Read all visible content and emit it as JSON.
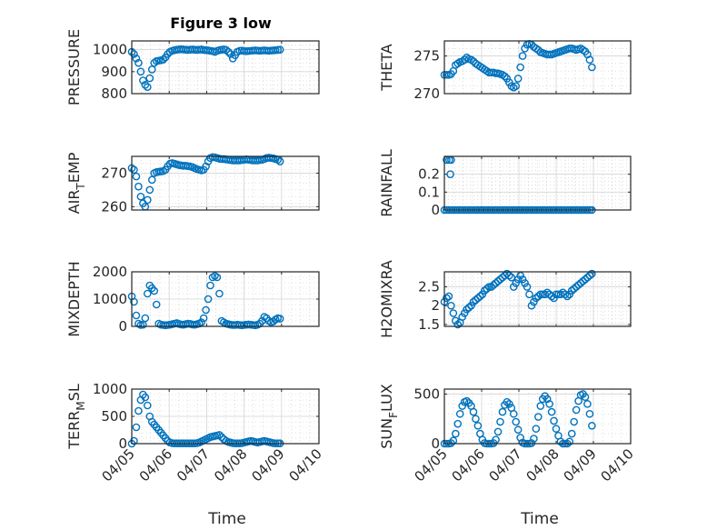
{
  "figure": {
    "title": "Figure 3 low",
    "xlabel": "Time",
    "x_tick_labels": [
      "04/05",
      "04/06",
      "04/07",
      "04/08",
      "04/09",
      "04/10"
    ],
    "marker_color": "#0072BD"
  },
  "chart_data": [
    {
      "type": "scatter",
      "ylabel": "PRESSURE",
      "yticks": [
        800,
        900,
        1000
      ],
      "ylim": [
        800,
        1040
      ],
      "grid": true,
      "xlim": [
        0,
        5
      ],
      "x": [
        0.0,
        0.06,
        0.12,
        0.18,
        0.24,
        0.3,
        0.36,
        0.42,
        0.48,
        0.54,
        0.6,
        0.66,
        0.72,
        0.78,
        0.84,
        0.9,
        0.96,
        1.02,
        1.08,
        1.14,
        1.2,
        1.26,
        1.32,
        1.38,
        1.44,
        1.5,
        1.56,
        1.62,
        1.68,
        1.74,
        1.8,
        1.86,
        1.92,
        1.98,
        2.04,
        2.1,
        2.16,
        2.22,
        2.28,
        2.34,
        2.4,
        2.46,
        2.52,
        2.58,
        2.64,
        2.7,
        2.76,
        2.82,
        2.88,
        2.94,
        3.0,
        3.06,
        3.12,
        3.18,
        3.24,
        3.3,
        3.36,
        3.42,
        3.48,
        3.54,
        3.6,
        3.66,
        3.72,
        3.78,
        3.84,
        3.9,
        3.96
      ],
      "values": [
        990,
        980,
        960,
        940,
        900,
        860,
        840,
        830,
        870,
        910,
        940,
        948,
        950,
        952,
        955,
        965,
        980,
        990,
        995,
        998,
        1000,
        1001,
        1002,
        1001,
        1000,
        999,
        1000,
        1001,
        1000,
        999,
        1000,
        1001,
        999,
        998,
        997,
        995,
        993,
        990,
        995,
        998,
        1000,
        1001,
        999,
        990,
        980,
        960,
        975,
        990,
        995,
        996,
        994,
        993,
        994,
        995,
        996,
        997,
        996,
        995,
        996,
        997,
        996,
        995,
        996,
        997,
        998,
        999,
        1000
      ]
    },
    {
      "type": "scatter",
      "ylabel": "THETA",
      "yticks": [
        270,
        275
      ],
      "ylim": [
        270,
        277
      ],
      "grid": true,
      "xlim": [
        0,
        5
      ],
      "x": [
        0.0,
        0.06,
        0.12,
        0.18,
        0.24,
        0.3,
        0.36,
        0.42,
        0.48,
        0.54,
        0.6,
        0.66,
        0.72,
        0.78,
        0.84,
        0.9,
        0.96,
        1.02,
        1.08,
        1.14,
        1.2,
        1.26,
        1.32,
        1.38,
        1.44,
        1.5,
        1.56,
        1.62,
        1.68,
        1.74,
        1.8,
        1.86,
        1.92,
        1.98,
        2.04,
        2.1,
        2.16,
        2.22,
        2.28,
        2.34,
        2.4,
        2.46,
        2.52,
        2.58,
        2.64,
        2.7,
        2.76,
        2.82,
        2.88,
        2.94,
        3.0,
        3.06,
        3.12,
        3.18,
        3.24,
        3.3,
        3.36,
        3.42,
        3.48,
        3.54,
        3.6,
        3.66,
        3.72,
        3.78,
        3.84,
        3.9,
        3.96
      ],
      "values": [
        272.5,
        272.5,
        272.5,
        272.6,
        273.0,
        273.8,
        274.0,
        274.2,
        274.3,
        274.5,
        274.8,
        274.6,
        274.5,
        274.3,
        274.0,
        273.8,
        273.6,
        273.4,
        273.2,
        273.0,
        272.8,
        272.8,
        272.8,
        272.7,
        272.7,
        272.6,
        272.5,
        272.3,
        272.0,
        271.5,
        271.0,
        270.8,
        271.0,
        272.0,
        273.5,
        275.0,
        276.0,
        276.5,
        276.6,
        276.5,
        276.2,
        276.0,
        275.8,
        275.5,
        275.4,
        275.3,
        275.2,
        275.2,
        275.2,
        275.3,
        275.4,
        275.5,
        275.6,
        275.7,
        275.8,
        275.9,
        276.0,
        276.0,
        275.9,
        275.8,
        275.9,
        276.0,
        275.8,
        275.6,
        275.2,
        274.5,
        273.5
      ]
    },
    {
      "type": "scatter",
      "ylabel": "AIRTEMP",
      "yticks": [
        260,
        270
      ],
      "ylim": [
        259,
        275
      ],
      "grid": true,
      "xlim": [
        0,
        5
      ],
      "x": [
        0.0,
        0.06,
        0.12,
        0.18,
        0.24,
        0.3,
        0.36,
        0.42,
        0.48,
        0.54,
        0.6,
        0.66,
        0.72,
        0.78,
        0.84,
        0.9,
        0.96,
        1.02,
        1.08,
        1.14,
        1.2,
        1.26,
        1.32,
        1.38,
        1.44,
        1.5,
        1.56,
        1.62,
        1.68,
        1.74,
        1.8,
        1.86,
        1.92,
        1.98,
        2.04,
        2.1,
        2.16,
        2.22,
        2.28,
        2.34,
        2.4,
        2.46,
        2.52,
        2.58,
        2.64,
        2.7,
        2.76,
        2.82,
        2.88,
        2.94,
        3.0,
        3.06,
        3.12,
        3.18,
        3.24,
        3.3,
        3.36,
        3.42,
        3.48,
        3.54,
        3.6,
        3.66,
        3.72,
        3.78,
        3.84,
        3.9,
        3.96
      ],
      "values": [
        271.5,
        271.0,
        269.0,
        266.0,
        263.0,
        261.0,
        260.0,
        262.0,
        265.0,
        268.0,
        270.0,
        270.3,
        270.4,
        270.5,
        270.6,
        271.0,
        272.0,
        272.8,
        273.0,
        272.8,
        272.6,
        272.4,
        272.3,
        272.2,
        272.2,
        272.1,
        272.0,
        271.8,
        271.5,
        271.2,
        271.0,
        270.8,
        271.0,
        272.0,
        273.5,
        274.5,
        274.8,
        274.7,
        274.5,
        274.3,
        274.2,
        274.2,
        274.1,
        274.0,
        273.9,
        273.8,
        273.8,
        273.8,
        273.8,
        273.9,
        274.0,
        274.1,
        274.0,
        273.9,
        273.8,
        273.8,
        273.8,
        273.9,
        274.0,
        274.2,
        274.5,
        274.6,
        274.5,
        274.4,
        274.2,
        274.0,
        273.5
      ]
    },
    {
      "type": "scatter",
      "ylabel": "RAINFALL",
      "yticks": [
        0,
        0.1,
        0.2
      ],
      "ylim": [
        0,
        0.3
      ],
      "grid": true,
      "xlim": [
        0,
        5
      ],
      "x": [
        0.0,
        0.06,
        0.12,
        0.18,
        0.24,
        0.3,
        0.36,
        0.42,
        0.48,
        0.54,
        0.6,
        0.66,
        0.72,
        0.78,
        0.84,
        0.9,
        0.96,
        1.02,
        1.08,
        1.14,
        1.2,
        1.26,
        1.32,
        1.38,
        1.44,
        1.5,
        1.56,
        1.62,
        1.68,
        1.74,
        1.8,
        1.86,
        1.92,
        1.98,
        2.04,
        2.1,
        2.16,
        2.22,
        2.28,
        2.34,
        2.4,
        2.46,
        2.52,
        2.58,
        2.64,
        2.7,
        2.76,
        2.82,
        2.88,
        2.94,
        3.0,
        3.06,
        3.12,
        3.18,
        3.24,
        3.3,
        3.36,
        3.42,
        3.48,
        3.54,
        3.6,
        3.66,
        3.72,
        3.78,
        3.84,
        3.9,
        3.96,
        0.06,
        0.13,
        0.18,
        0.16
      ],
      "values": [
        0,
        0,
        0,
        0,
        0,
        0,
        0,
        0,
        0,
        0,
        0,
        0,
        0,
        0,
        0,
        0,
        0,
        0,
        0,
        0,
        0,
        0,
        0,
        0,
        0,
        0,
        0,
        0,
        0,
        0,
        0,
        0,
        0,
        0,
        0,
        0,
        0,
        0,
        0,
        0,
        0,
        0,
        0,
        0,
        0,
        0,
        0,
        0,
        0,
        0,
        0,
        0,
        0,
        0,
        0,
        0,
        0,
        0,
        0,
        0,
        0,
        0,
        0,
        0,
        0,
        0,
        0,
        0.28,
        0.28,
        0.28,
        0.2
      ]
    },
    {
      "type": "scatter",
      "ylabel": "MIXDEPTH",
      "yticks": [
        0,
        1000,
        2000
      ],
      "ylim": [
        0,
        2000
      ],
      "grid": true,
      "xlim": [
        0,
        5
      ],
      "x": [
        0.0,
        0.06,
        0.12,
        0.18,
        0.24,
        0.3,
        0.36,
        0.42,
        0.48,
        0.54,
        0.6,
        0.66,
        0.72,
        0.78,
        0.84,
        0.9,
        0.96,
        1.02,
        1.08,
        1.14,
        1.2,
        1.26,
        1.32,
        1.38,
        1.44,
        1.5,
        1.56,
        1.62,
        1.68,
        1.74,
        1.8,
        1.86,
        1.92,
        1.98,
        2.04,
        2.1,
        2.16,
        2.22,
        2.28,
        2.34,
        2.4,
        2.46,
        2.52,
        2.58,
        2.64,
        2.7,
        2.76,
        2.82,
        2.88,
        2.94,
        3.0,
        3.06,
        3.12,
        3.18,
        3.24,
        3.3,
        3.36,
        3.42,
        3.48,
        3.54,
        3.6,
        3.66,
        3.72,
        3.78,
        3.84,
        3.9,
        3.96
      ],
      "values": [
        1100,
        900,
        400,
        100,
        50,
        60,
        300,
        1200,
        1500,
        1400,
        1300,
        800,
        100,
        60,
        50,
        40,
        50,
        60,
        80,
        100,
        120,
        90,
        70,
        60,
        80,
        100,
        90,
        70,
        60,
        80,
        100,
        150,
        300,
        600,
        1000,
        1500,
        1800,
        1850,
        1800,
        1200,
        200,
        150,
        100,
        80,
        60,
        50,
        50,
        60,
        50,
        40,
        50,
        60,
        70,
        60,
        50,
        40,
        60,
        100,
        200,
        350,
        300,
        200,
        150,
        180,
        250,
        300,
        280
      ]
    },
    {
      "type": "scatter",
      "ylabel": "H2OMIXRA",
      "yticks": [
        1.5,
        2,
        2.5
      ],
      "ylim": [
        1.45,
        2.9
      ],
      "grid": true,
      "xlim": [
        0,
        5
      ],
      "x": [
        0.0,
        0.06,
        0.12,
        0.18,
        0.24,
        0.3,
        0.36,
        0.42,
        0.48,
        0.54,
        0.6,
        0.66,
        0.72,
        0.78,
        0.84,
        0.9,
        0.96,
        1.02,
        1.08,
        1.14,
        1.2,
        1.26,
        1.32,
        1.38,
        1.44,
        1.5,
        1.56,
        1.62,
        1.68,
        1.74,
        1.8,
        1.86,
        1.92,
        1.98,
        2.04,
        2.1,
        2.16,
        2.22,
        2.28,
        2.34,
        2.4,
        2.46,
        2.52,
        2.58,
        2.64,
        2.7,
        2.76,
        2.82,
        2.88,
        2.94,
        3.0,
        3.06,
        3.12,
        3.18,
        3.24,
        3.3,
        3.36,
        3.42,
        3.48,
        3.54,
        3.6,
        3.66,
        3.72,
        3.78,
        3.84,
        3.9,
        3.96
      ],
      "values": [
        2.1,
        2.2,
        2.25,
        2.0,
        1.8,
        1.6,
        1.5,
        1.55,
        1.7,
        1.8,
        1.9,
        1.95,
        2.0,
        2.1,
        2.15,
        2.2,
        2.25,
        2.3,
        2.4,
        2.45,
        2.5,
        2.5,
        2.55,
        2.6,
        2.65,
        2.7,
        2.75,
        2.8,
        2.85,
        2.8,
        2.75,
        2.5,
        2.6,
        2.7,
        2.8,
        2.7,
        2.6,
        2.5,
        2.3,
        2.0,
        2.1,
        2.2,
        2.25,
        2.3,
        2.3,
        2.3,
        2.35,
        2.3,
        2.25,
        2.2,
        2.3,
        2.3,
        2.3,
        2.35,
        2.3,
        2.25,
        2.3,
        2.4,
        2.45,
        2.5,
        2.55,
        2.6,
        2.65,
        2.7,
        2.75,
        2.8,
        2.85
      ]
    },
    {
      "type": "scatter",
      "ylabel": "TERRMSL",
      "yticks": [
        0,
        500,
        1000
      ],
      "ylim": [
        0,
        1000
      ],
      "grid": true,
      "xlim": [
        0,
        5
      ],
      "x": [
        0.0,
        0.06,
        0.12,
        0.18,
        0.24,
        0.3,
        0.36,
        0.42,
        0.48,
        0.54,
        0.6,
        0.66,
        0.72,
        0.78,
        0.84,
        0.9,
        0.96,
        1.02,
        1.08,
        1.14,
        1.2,
        1.26,
        1.32,
        1.38,
        1.44,
        1.5,
        1.56,
        1.62,
        1.68,
        1.74,
        1.8,
        1.86,
        1.92,
        1.98,
        2.04,
        2.1,
        2.16,
        2.22,
        2.28,
        2.34,
        2.4,
        2.46,
        2.52,
        2.58,
        2.64,
        2.7,
        2.76,
        2.82,
        2.88,
        2.94,
        3.0,
        3.06,
        3.12,
        3.18,
        3.24,
        3.3,
        3.36,
        3.42,
        3.48,
        3.54,
        3.6,
        3.66,
        3.72,
        3.78,
        3.84,
        3.9,
        3.96
      ],
      "values": [
        0,
        50,
        300,
        600,
        800,
        900,
        850,
        700,
        500,
        400,
        350,
        300,
        250,
        200,
        150,
        100,
        50,
        20,
        10,
        5,
        5,
        5,
        5,
        5,
        5,
        5,
        5,
        5,
        5,
        10,
        20,
        40,
        60,
        80,
        100,
        120,
        130,
        140,
        150,
        160,
        120,
        80,
        50,
        30,
        20,
        10,
        5,
        5,
        5,
        10,
        20,
        30,
        40,
        50,
        40,
        30,
        20,
        30,
        40,
        50,
        40,
        30,
        20,
        10,
        5,
        5,
        5
      ]
    },
    {
      "type": "scatter",
      "ylabel": "SUNFLUX",
      "yticks": [
        0,
        500
      ],
      "ylim": [
        0,
        550
      ],
      "grid": true,
      "xlim": [
        0,
        5
      ],
      "x": [
        0.0,
        0.06,
        0.12,
        0.18,
        0.24,
        0.3,
        0.36,
        0.42,
        0.48,
        0.54,
        0.6,
        0.66,
        0.72,
        0.78,
        0.84,
        0.9,
        0.96,
        1.02,
        1.08,
        1.14,
        1.2,
        1.26,
        1.32,
        1.38,
        1.44,
        1.5,
        1.56,
        1.62,
        1.68,
        1.74,
        1.8,
        1.86,
        1.92,
        1.98,
        2.04,
        2.1,
        2.16,
        2.22,
        2.28,
        2.34,
        2.4,
        2.46,
        2.52,
        2.58,
        2.64,
        2.7,
        2.76,
        2.82,
        2.88,
        2.94,
        3.0,
        3.06,
        3.12,
        3.18,
        3.24,
        3.3,
        3.36,
        3.42,
        3.48,
        3.54,
        3.6,
        3.66,
        3.72,
        3.78,
        3.84,
        3.9,
        3.96
      ],
      "values": [
        0,
        0,
        0,
        5,
        30,
        100,
        200,
        300,
        380,
        420,
        430,
        410,
        380,
        320,
        250,
        180,
        100,
        40,
        5,
        0,
        0,
        0,
        5,
        40,
        120,
        220,
        320,
        390,
        420,
        400,
        360,
        300,
        220,
        140,
        60,
        10,
        0,
        0,
        0,
        5,
        50,
        150,
        270,
        380,
        450,
        480,
        450,
        400,
        320,
        230,
        150,
        80,
        20,
        0,
        0,
        0,
        20,
        100,
        220,
        340,
        430,
        490,
        500,
        470,
        400,
        300,
        180
      ]
    }
  ]
}
